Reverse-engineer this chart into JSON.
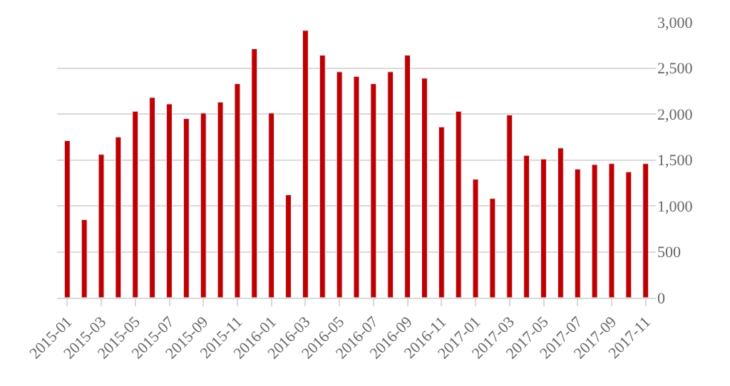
{
  "chart_data": {
    "type": "bar",
    "categories": [
      "2015-01",
      null,
      "2015-03",
      null,
      "2015-05",
      null,
      "2015-07",
      null,
      "2015-09",
      null,
      "2015-11",
      null,
      "2016-01",
      null,
      "2016-03",
      null,
      "2016-05",
      null,
      "2016-07",
      null,
      "2016-09",
      null,
      "2016-11",
      null,
      "2017-01",
      null,
      "2017-03",
      null,
      "2017-05",
      null,
      "2017-07",
      null,
      "2017-09",
      null,
      "2017-11"
    ],
    "values": [
      1710,
      850,
      1560,
      1750,
      2030,
      2180,
      2110,
      1950,
      2010,
      2130,
      2330,
      2710,
      2010,
      1120,
      2910,
      2640,
      2460,
      2410,
      2330,
      2460,
      2640,
      2390,
      1860,
      2030,
      1290,
      1080,
      1990,
      1550,
      1510,
      1630,
      1400,
      1450,
      1460,
      1370,
      1460
    ],
    "color": "#c00000",
    "ylim": [
      0,
      3000
    ],
    "yticks": [
      0,
      500,
      {
        "value": 1000,
        "label": "1,000"
      },
      {
        "value": 1500,
        "label": "1,500"
      },
      {
        "value": 2000,
        "label": "2,000"
      },
      {
        "value": 2500,
        "label": "2,500"
      },
      {
        "value": 3000,
        "label": "3,000"
      }
    ],
    "grid": "y"
  }
}
